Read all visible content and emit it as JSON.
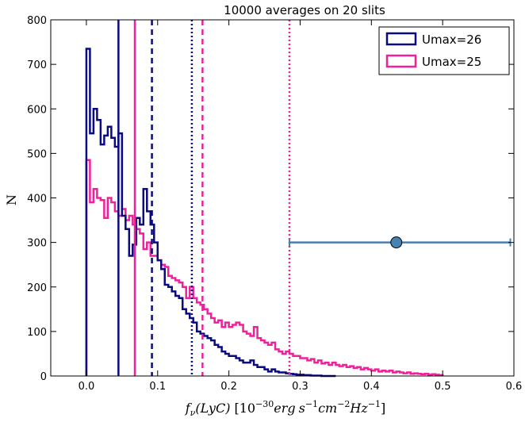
{
  "chart_data": {
    "type": "histogram",
    "title": "10000 averages on 20 slits",
    "xlabel": "f_ν(LyC) [10^{-30} erg s^{-1} cm^{-2} Hz^{-1}]",
    "xlabel_parts": {
      "f": "f",
      "sub": "ν",
      "lyc": "(LyC)",
      "bracket_open": "[",
      "ten": "10",
      "exp30": "−30",
      "erg": "erg",
      "s": "s",
      "exp1a": "−1",
      "cm": "cm",
      "exp2": "−2",
      "Hz": "Hz",
      "exp1b": "−1",
      "bracket_close": "]"
    },
    "ylabel": "N",
    "xlim": [
      -0.05,
      0.6
    ],
    "ylim": [
      0,
      800
    ],
    "xticks": [
      "0.0",
      "0.1",
      "0.2",
      "0.3",
      "0.4",
      "0.5",
      "0.6"
    ],
    "yticks": [
      "0",
      "100",
      "200",
      "300",
      "400",
      "500",
      "600",
      "700",
      "800"
    ],
    "legend_position": "top-right",
    "bin_start": 0.0,
    "bin_width": 0.005,
    "series": [
      {
        "name": "Umax=26",
        "color": "#0a0a80",
        "counts": [
          735,
          545,
          600,
          575,
          520,
          540,
          560,
          535,
          515,
          545,
          360,
          330,
          270,
          295,
          355,
          340,
          420,
          370,
          340,
          300,
          260,
          240,
          205,
          200,
          190,
          180,
          175,
          150,
          140,
          130,
          120,
          100,
          95,
          90,
          85,
          80,
          70,
          65,
          55,
          50,
          45,
          45,
          40,
          35,
          30,
          30,
          35,
          25,
          20,
          20,
          15,
          10,
          15,
          10,
          8,
          8,
          6,
          5,
          4,
          3,
          3,
          2,
          2,
          1,
          1,
          1,
          0,
          0,
          0,
          0
        ]
      },
      {
        "name": "Umax=25",
        "color": "#f0209a",
        "counts": [
          485,
          390,
          420,
          400,
          395,
          355,
          400,
          390,
          370,
          360,
          375,
          350,
          360,
          340,
          330,
          320,
          285,
          300,
          270,
          270,
          260,
          250,
          245,
          225,
          220,
          215,
          210,
          200,
          175,
          200,
          175,
          165,
          160,
          150,
          140,
          130,
          120,
          125,
          110,
          120,
          110,
          115,
          120,
          115,
          100,
          95,
          90,
          110,
          85,
          80,
          75,
          70,
          75,
          60,
          55,
          50,
          55,
          50,
          45,
          45,
          40,
          40,
          35,
          38,
          30,
          35,
          28,
          30,
          25,
          30,
          25,
          22,
          25,
          20,
          22,
          18,
          20,
          15,
          18,
          15,
          12,
          15,
          10,
          12,
          10,
          12,
          8,
          10,
          8,
          6,
          8,
          5,
          6,
          5,
          4,
          5,
          3,
          4,
          3,
          2
        ]
      }
    ],
    "vlines": [
      {
        "x": 0.045,
        "series": "Umax=26",
        "style": "solid"
      },
      {
        "x": 0.092,
        "series": "Umax=26",
        "style": "dashed"
      },
      {
        "x": 0.148,
        "series": "Umax=26",
        "style": "dotted"
      },
      {
        "x": 0.068,
        "series": "Umax=25",
        "style": "solid"
      },
      {
        "x": 0.163,
        "series": "Umax=25",
        "style": "dashed"
      },
      {
        "x": 0.285,
        "series": "Umax=25",
        "style": "dotted"
      }
    ],
    "errorbar": {
      "x": 0.435,
      "y": 300,
      "xmin": 0.285,
      "xmax": 0.595,
      "color": "#4a7fae",
      "marker_color": "#4682b4"
    }
  }
}
